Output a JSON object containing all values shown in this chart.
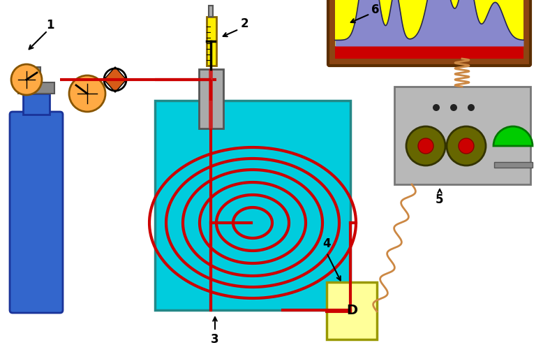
{
  "bg_color": "#ffffff",
  "fig_width": 7.88,
  "fig_height": 5.04,
  "pipe_color": "#cc0000",
  "pipe_lw": 3.0,
  "label_fontsize": 12
}
